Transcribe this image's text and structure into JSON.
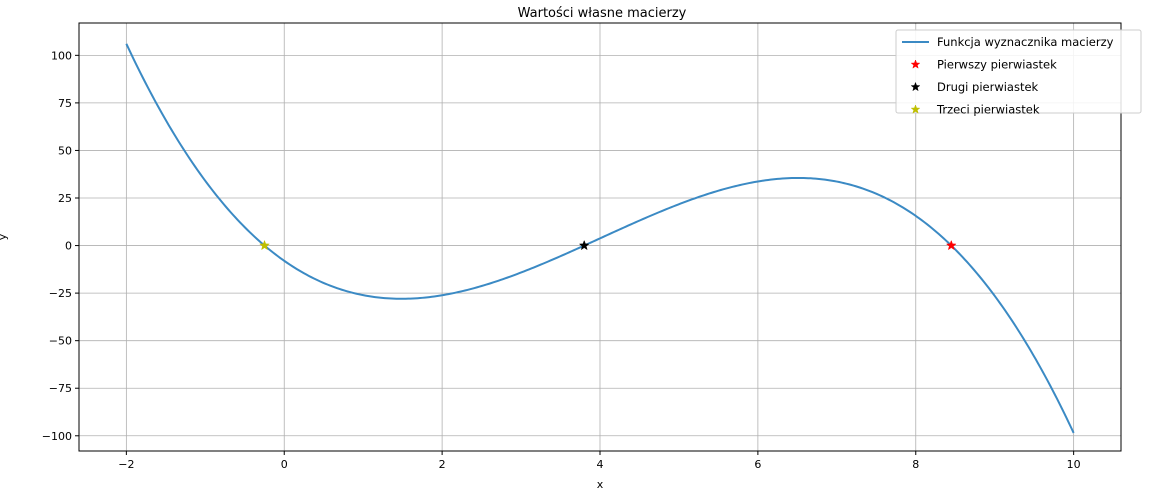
{
  "chart_data": {
    "type": "line",
    "title": "Wartości własne macierzy",
    "xlabel": "x",
    "ylabel": "y",
    "xlim": [
      -2.6,
      10.6
    ],
    "ylim": [
      -108,
      117
    ],
    "xticks": [
      -2,
      0,
      2,
      4,
      6,
      8,
      10
    ],
    "yticks": [
      -100,
      -75,
      -50,
      -25,
      0,
      25,
      50,
      75,
      100
    ],
    "grid": true,
    "legend_position": "top-right",
    "curve": {
      "name": "Funkcja wyznacznika macierzy",
      "color": "#3b8ac4",
      "x_range": [
        -2,
        10
      ],
      "polynomial_roots": [
        -0.25,
        3.8,
        8.45
      ],
      "leading_coefficient": -1
    },
    "series": [
      {
        "name": "Pierwszy pierwiastek",
        "x": [
          8.45
        ],
        "y": [
          0
        ],
        "color": "#ff0000",
        "marker": "star"
      },
      {
        "name": "Drugi pierwiastek",
        "x": [
          3.8
        ],
        "y": [
          0
        ],
        "color": "#000000",
        "marker": "star"
      },
      {
        "name": "Trzeci pierwiastek",
        "x": [
          -0.25
        ],
        "y": [
          0
        ],
        "color": "#bfbf00",
        "marker": "star"
      }
    ]
  }
}
